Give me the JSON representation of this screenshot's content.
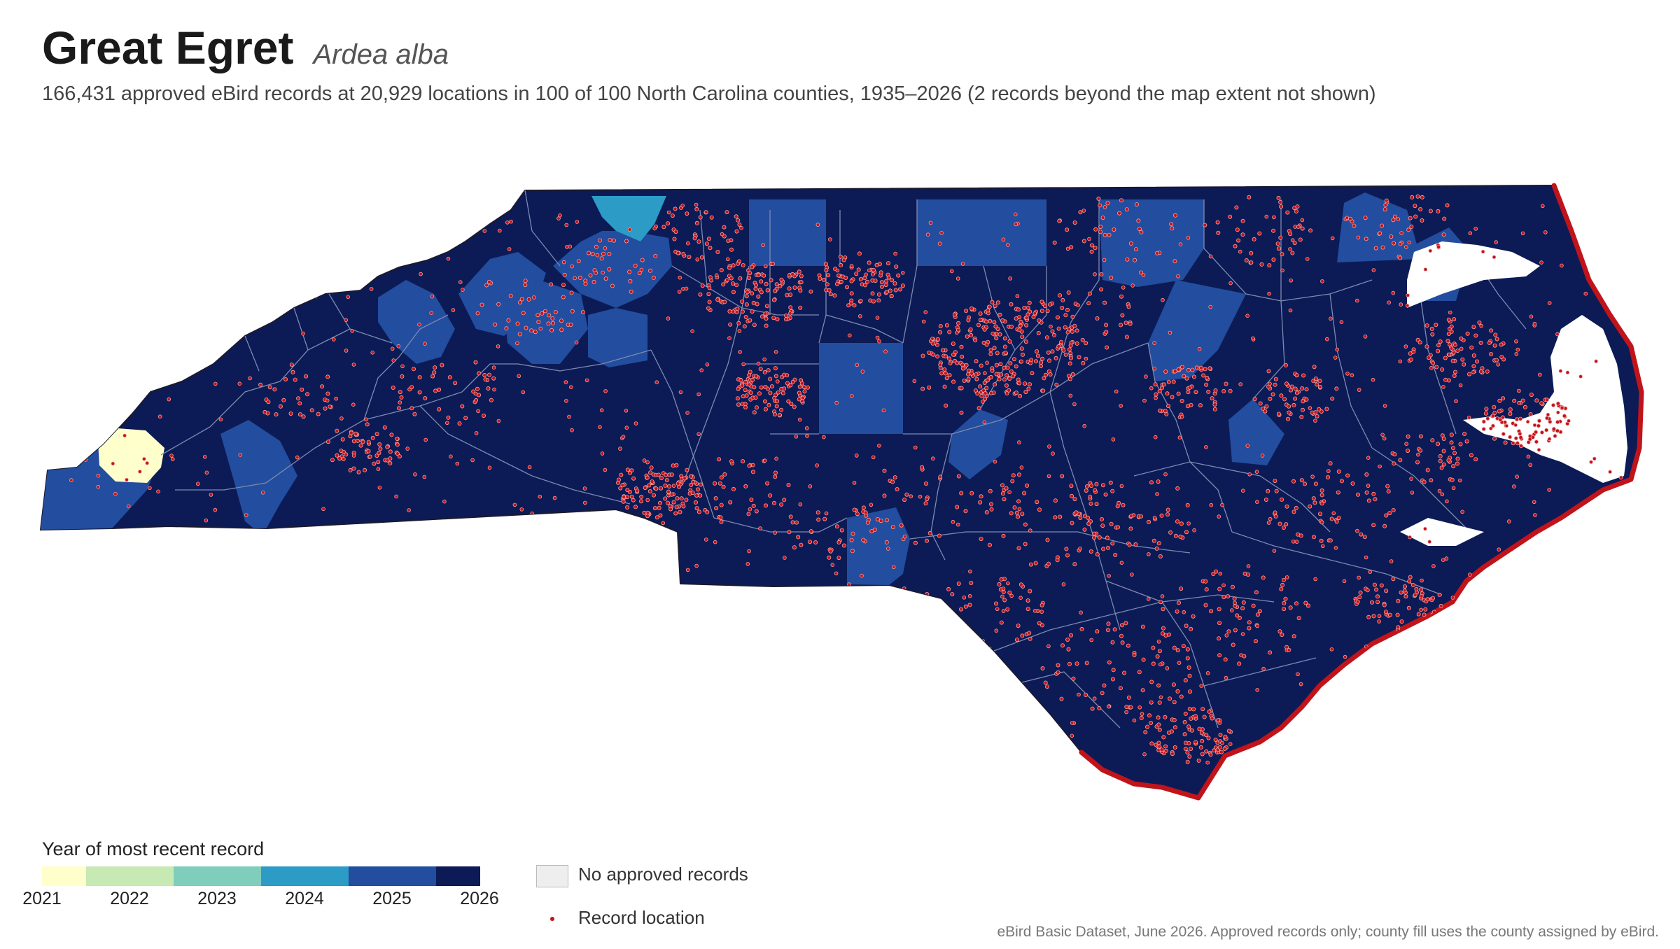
{
  "title": "Great Egret",
  "scientific_name": "Ardea alba",
  "subtitle": "166,431 approved eBird records at 20,929 locations in 100 of 100 North Carolina counties, 1935–2026 (2 records beyond the map extent not shown)",
  "legend": {
    "title": "Year of most recent record",
    "years": [
      "2021",
      "2022",
      "2023",
      "2024",
      "2025",
      "2026"
    ],
    "colors": [
      "#ffffcc",
      "#c7e9b4",
      "#7fcdbb",
      "#2c9bc6",
      "#234d9e",
      "#0c1b56"
    ],
    "no_data_label": "No approved records",
    "no_data_color": "#eeeeee",
    "record_label": "Record location",
    "record_color": "#c0141a"
  },
  "map": {
    "fill_default": "#0c1b56",
    "county_line_color": "#7d8ab0"
  },
  "source": "eBird Basic Dataset, June 2026. Approved records only; county fill uses the county assigned by eBird."
}
